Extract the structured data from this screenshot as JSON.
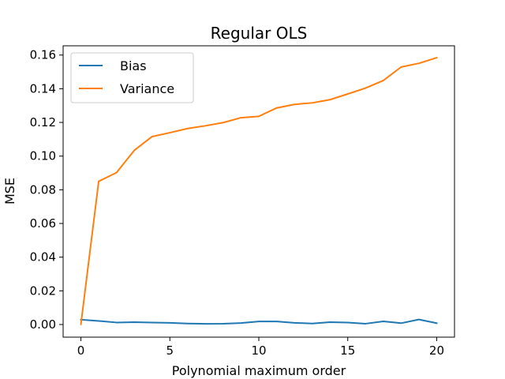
{
  "chart_data": {
    "type": "line",
    "title": "Regular OLS",
    "xlabel": "Polynomial maximum order",
    "ylabel": "MSE",
    "xlim": [
      -1,
      21
    ],
    "ylim": [
      -0.0075,
      0.1655
    ],
    "xticks": [
      0,
      5,
      10,
      15,
      20
    ],
    "xtick_labels": [
      "0",
      "5",
      "10",
      "15",
      "20"
    ],
    "yticks": [
      0.0,
      0.02,
      0.04,
      0.06,
      0.08,
      0.1,
      0.12,
      0.14,
      0.16
    ],
    "ytick_labels": [
      "0.00",
      "0.02",
      "0.04",
      "0.06",
      "0.08",
      "0.10",
      "0.12",
      "0.14",
      "0.16"
    ],
    "grid": false,
    "legend_position": "top-left",
    "x": [
      0,
      1,
      2,
      3,
      4,
      5,
      6,
      7,
      8,
      9,
      10,
      11,
      12,
      13,
      14,
      15,
      16,
      17,
      18,
      19,
      20
    ],
    "series": [
      {
        "name": "Bias",
        "color": "#1f77b4",
        "values": [
          0.0029,
          0.0021,
          0.0012,
          0.0014,
          0.0012,
          0.001,
          0.0006,
          0.0004,
          0.0005,
          0.0009,
          0.0018,
          0.0018,
          0.001,
          0.0006,
          0.0014,
          0.0012,
          0.0005,
          0.0019,
          0.0008,
          0.003,
          0.0008
        ]
      },
      {
        "name": "Variance",
        "color": "#ff7f0e",
        "values": [
          0.0002,
          0.085,
          0.0902,
          0.1034,
          0.1116,
          0.1139,
          0.1164,
          0.118,
          0.1199,
          0.1228,
          0.1236,
          0.1286,
          0.1307,
          0.1316,
          0.1335,
          0.1369,
          0.1404,
          0.1449,
          0.1529,
          0.1551,
          0.1584
        ]
      }
    ]
  }
}
